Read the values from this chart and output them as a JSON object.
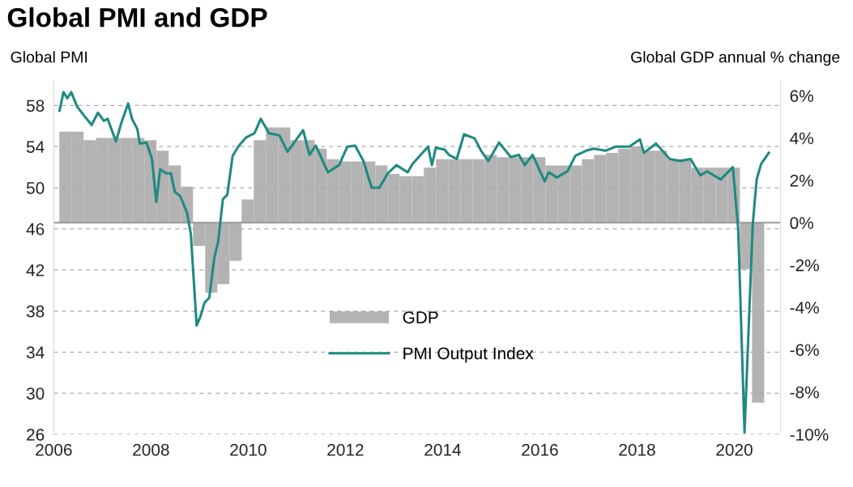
{
  "chart_data": {
    "type": "bar",
    "title": "Global PMI and GDP",
    "ylabel": "Global PMI",
    "y2label": "Global GDP annual % change",
    "series": [
      {
        "name": "GDP",
        "axis": "y2",
        "color": "#b3b3b3",
        "x": [
          2006.24,
          2006.49,
          2006.74,
          2006.99,
          2007.24,
          2007.49,
          2007.74,
          2007.99,
          2008.24,
          2008.49,
          2008.74,
          2008.99,
          2009.24,
          2009.49,
          2009.74,
          2009.99,
          2010.24,
          2010.49,
          2010.74,
          2010.99,
          2011.24,
          2011.49,
          2011.74,
          2011.99,
          2012.24,
          2012.49,
          2012.74,
          2012.99,
          2013.24,
          2013.49,
          2013.74,
          2013.99,
          2014.24,
          2014.49,
          2014.74,
          2014.99,
          2015.24,
          2015.49,
          2015.74,
          2015.99,
          2016.24,
          2016.49,
          2016.74,
          2016.99,
          2017.24,
          2017.49,
          2017.74,
          2017.99,
          2018.24,
          2018.49,
          2018.74,
          2018.99,
          2019.24,
          2019.49,
          2019.74,
          2019.99,
          2020.24,
          2020.49
        ],
        "values": [
          4.3,
          4.3,
          3.9,
          4.0,
          4.0,
          4.0,
          4.0,
          3.9,
          3.4,
          2.7,
          1.7,
          -1.1,
          -3.3,
          -2.9,
          -1.8,
          1.1,
          3.9,
          4.5,
          4.5,
          3.9,
          3.9,
          3.5,
          3.0,
          2.9,
          2.9,
          2.9,
          2.7,
          2.3,
          2.2,
          2.2,
          2.6,
          3.0,
          3.0,
          3.0,
          3.0,
          3.2,
          3.1,
          3.1,
          3.1,
          3.1,
          2.7,
          2.7,
          2.7,
          3.0,
          3.2,
          3.3,
          3.5,
          3.6,
          3.4,
          3.4,
          3.0,
          3.0,
          2.6,
          2.6,
          2.6,
          2.6,
          -2.2,
          -8.5
        ]
      },
      {
        "name": "PMI Output Index",
        "type": "line",
        "axis": "y",
        "color": "#1f8a80",
        "x": [
          2006.12,
          2006.2,
          2006.28,
          2006.36,
          2006.48,
          2006.61,
          2006.78,
          2006.91,
          2007.03,
          2007.11,
          2007.28,
          2007.39,
          2007.53,
          2007.61,
          2007.72,
          2007.77,
          2007.91,
          2008.02,
          2008.11,
          2008.19,
          2008.31,
          2008.41,
          2008.49,
          2008.6,
          2008.74,
          2008.82,
          2008.94,
          2009.02,
          2009.1,
          2009.2,
          2009.3,
          2009.38,
          2009.48,
          2009.57,
          2009.68,
          2009.81,
          2009.96,
          2010.13,
          2010.26,
          2010.43,
          2010.64,
          2010.81,
          2011.13,
          2011.26,
          2011.39,
          2011.64,
          2011.87,
          2012.04,
          2012.2,
          2012.37,
          2012.54,
          2012.7,
          2012.87,
          2013.05,
          2013.28,
          2013.38,
          2013.7,
          2013.78,
          2013.86,
          2014.04,
          2014.13,
          2014.29,
          2014.44,
          2014.66,
          2014.79,
          2014.94,
          2015.16,
          2015.4,
          2015.57,
          2015.69,
          2015.85,
          2016.1,
          2016.18,
          2016.35,
          2016.57,
          2016.73,
          2016.95,
          2017.11,
          2017.35,
          2017.56,
          2017.84,
          2018.06,
          2018.14,
          2018.39,
          2018.67,
          2018.89,
          2019.1,
          2019.3,
          2019.44,
          2019.72,
          2019.97,
          2020.08,
          2020.21,
          2020.38,
          2020.46,
          2020.55,
          2020.71
        ],
        "values": [
          57.5,
          59.3,
          58.7,
          59.3,
          57.9,
          57.1,
          56.1,
          57.3,
          56.5,
          56.7,
          54.5,
          56.3,
          58.2,
          56.7,
          55.7,
          54.3,
          54.4,
          52.8,
          48.6,
          51.8,
          51.4,
          51.4,
          49.6,
          49.2,
          47.6,
          45.5,
          36.6,
          37.5,
          38.8,
          39.3,
          43.1,
          44.7,
          48.9,
          49.3,
          53.1,
          54.1,
          54.9,
          55.3,
          56.7,
          55.3,
          55.1,
          53.5,
          55.6,
          53.2,
          54.1,
          51.5,
          52.2,
          54.0,
          54.1,
          52.6,
          50.0,
          50.0,
          51.4,
          52.2,
          51.5,
          52.3,
          54.0,
          52.2,
          53.9,
          53.7,
          53.2,
          52.8,
          55.2,
          54.8,
          53.6,
          52.6,
          54.4,
          53.0,
          53.2,
          52.2,
          53.2,
          50.6,
          51.5,
          51.0,
          51.6,
          53.1,
          53.6,
          53.8,
          53.6,
          54.0,
          54.0,
          54.7,
          53.4,
          54.3,
          52.8,
          52.6,
          52.8,
          51.2,
          51.6,
          50.8,
          52.0,
          46.0,
          26.2,
          46.5,
          50.8,
          52.3,
          53.4
        ]
      }
    ],
    "xlim": [
      2006,
      2020.95
    ],
    "xticks": [
      2006,
      2008,
      2010,
      2012,
      2014,
      2016,
      2018,
      2020
    ],
    "ylim": [
      26,
      60.4
    ],
    "yticks": [
      26,
      30,
      34,
      38,
      42,
      46,
      50,
      54,
      58
    ],
    "y2lim": [
      -10,
      6.7
    ],
    "y2ticks": [
      {
        "value": -10,
        "label": "-10%"
      },
      {
        "value": -8,
        "label": "-8%"
      },
      {
        "value": -6,
        "label": "-6%"
      },
      {
        "value": -4,
        "label": "-4%"
      },
      {
        "value": -2,
        "label": "-2%"
      },
      {
        "value": 0,
        "label": "0%"
      },
      {
        "value": 2,
        "label": "2%"
      },
      {
        "value": 4,
        "label": "4%"
      },
      {
        "value": 6,
        "label": "6%"
      }
    ],
    "ref_lines": [
      {
        "axis": "y2",
        "value": 0,
        "color": "#999999",
        "line_style": "solid"
      }
    ],
    "grid": "y",
    "legend": "bottom",
    "line_style": "solid",
    "marker": "none"
  }
}
